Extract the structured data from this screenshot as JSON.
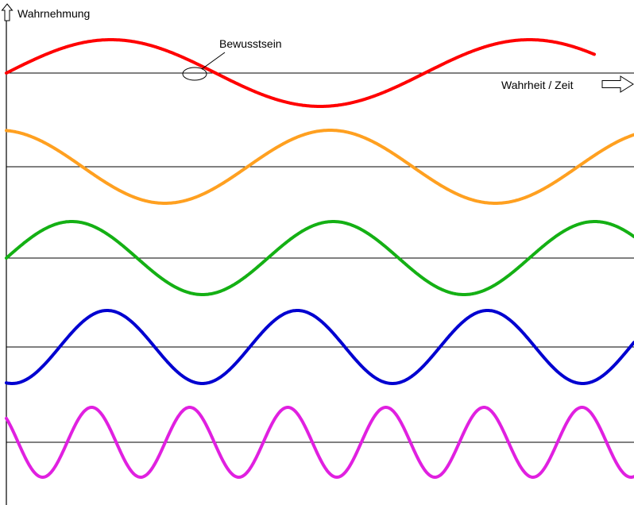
{
  "labels": {
    "y_axis": "Wahrnehmung",
    "x_axis": "Wahrheit / Zeit",
    "annotation": "Bewusstsein"
  },
  "colors": {
    "axis": "#000000",
    "background": "#ffffff"
  },
  "waves": [
    {
      "id": "red",
      "color": "#ff0000",
      "cycles": 1.5
    },
    {
      "id": "orange",
      "color": "#ffa020",
      "cycles": 1.9
    },
    {
      "id": "green",
      "color": "#14b014",
      "cycles": 2.4
    },
    {
      "id": "blue",
      "color": "#0000d0",
      "cycles": 3.3
    },
    {
      "id": "magenta",
      "color": "#e020e0",
      "cycles": 6.4
    }
  ]
}
